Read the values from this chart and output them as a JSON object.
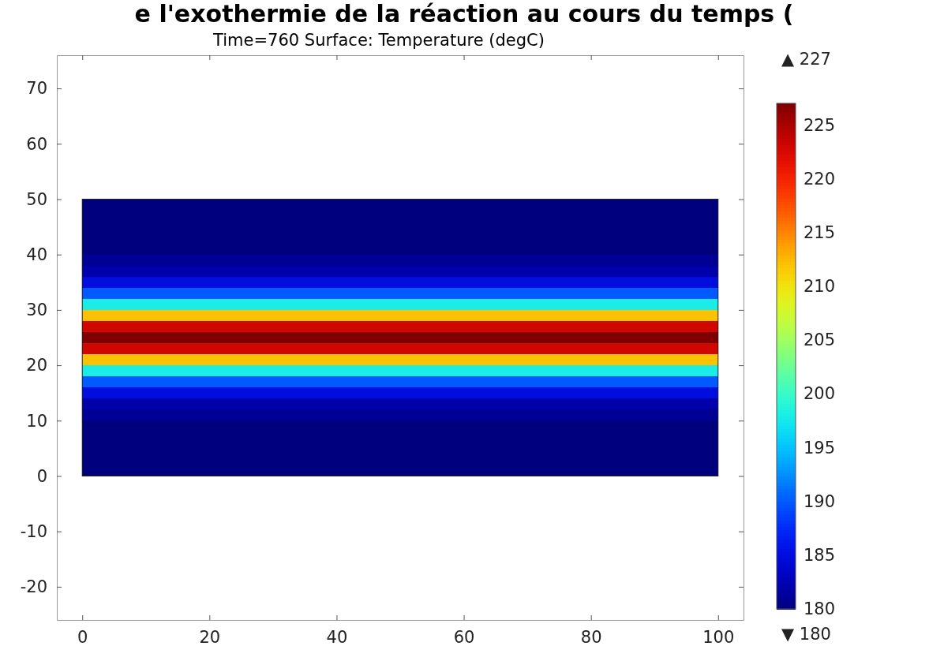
{
  "chart_data": {
    "type": "heatmap",
    "title": "e l'exothermie de la réaction au cours du temps (",
    "subtitle": "Time=760   Surface: Temperature (degC)",
    "x": [
      10,
      30,
      50,
      70,
      90
    ],
    "y": [
      49,
      47,
      45,
      43,
      41,
      39,
      37,
      35,
      33,
      31,
      29,
      27,
      25,
      23,
      21,
      19,
      17,
      15,
      13,
      11,
      9,
      7,
      5,
      3,
      1
    ],
    "cells": [
      [
        180,
        180,
        180,
        180,
        180
      ],
      [
        180,
        180,
        180,
        180,
        180
      ],
      [
        180,
        180,
        180,
        180,
        180
      ],
      [
        180,
        180,
        180,
        180,
        180
      ],
      [
        180,
        180,
        180,
        180,
        180
      ],
      [
        181,
        181,
        181,
        181,
        181
      ],
      [
        182,
        182,
        182,
        182,
        182
      ],
      [
        185,
        185,
        185,
        185,
        185
      ],
      [
        190,
        190,
        190,
        190,
        190
      ],
      [
        198,
        198,
        198,
        198,
        198
      ],
      [
        212,
        212,
        212,
        212,
        212
      ],
      [
        223,
        223,
        223,
        223,
        223
      ],
      [
        227,
        227,
        227,
        227,
        227
      ],
      [
        223,
        223,
        223,
        223,
        223
      ],
      [
        212,
        212,
        212,
        212,
        212
      ],
      [
        198,
        198,
        198,
        198,
        198
      ],
      [
        190,
        190,
        190,
        190,
        190
      ],
      [
        185,
        185,
        185,
        185,
        185
      ],
      [
        182,
        182,
        182,
        182,
        182
      ],
      [
        181,
        181,
        181,
        181,
        181
      ],
      [
        180,
        180,
        180,
        180,
        180
      ],
      [
        180,
        180,
        180,
        180,
        180
      ],
      [
        180,
        180,
        180,
        180,
        180
      ],
      [
        180,
        180,
        180,
        180,
        180
      ],
      [
        180,
        180,
        180,
        180,
        180
      ]
    ],
    "xlim": [
      -4,
      104
    ],
    "ylim": [
      -26,
      76
    ],
    "xticks": [
      0,
      20,
      40,
      60,
      80,
      100
    ],
    "yticks": [
      -20,
      -10,
      0,
      10,
      20,
      30,
      40,
      50,
      60,
      70
    ],
    "clim": [
      180,
      227
    ],
    "cticks": [
      180,
      185,
      190,
      195,
      200,
      205,
      210,
      215,
      220,
      225
    ],
    "annotations": [
      "▲ 227",
      "▼ 180"
    ]
  }
}
